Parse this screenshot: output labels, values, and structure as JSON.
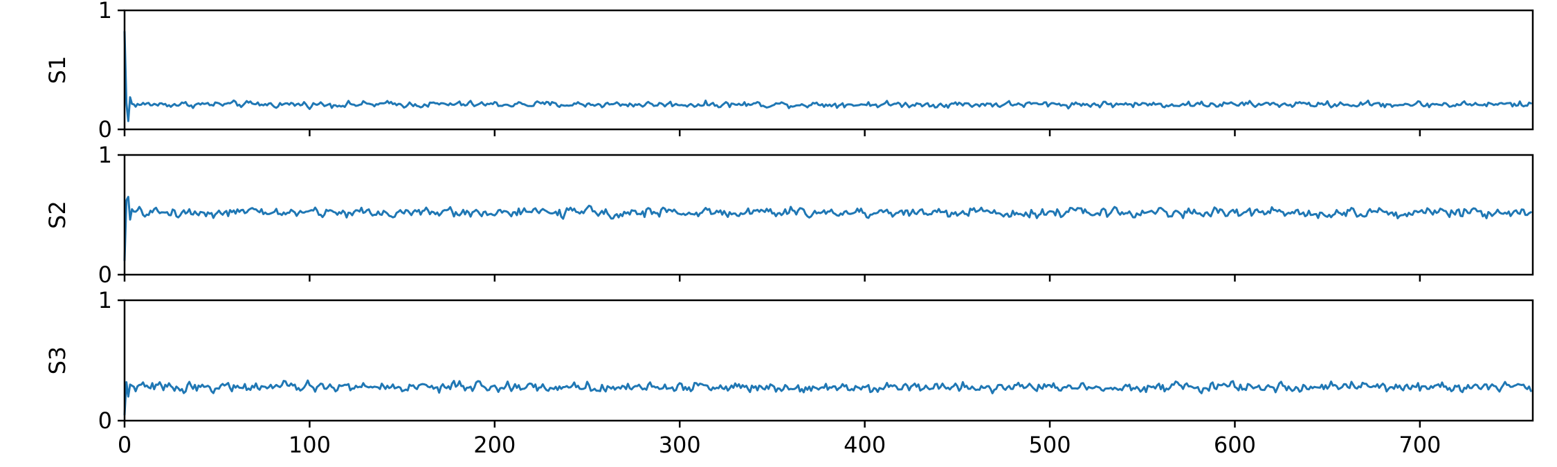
{
  "chart_data": {
    "type": "line",
    "n_points": 761,
    "xlim": [
      0,
      761
    ],
    "x_ticks": [
      0,
      100,
      200,
      300,
      400,
      500,
      600,
      700
    ],
    "x_tick_labels": [
      "0",
      "100",
      "200",
      "300",
      "400",
      "500",
      "600",
      "700"
    ],
    "shared_x": true,
    "grid": false,
    "colors": {
      "series": "#1f77b4",
      "frame": "#000000"
    },
    "panels": [
      {
        "ylabel": "S1",
        "ylim": [
          0,
          1
        ],
        "y_ticks": [
          0,
          1
        ],
        "y_tick_labels": [
          "0",
          "1"
        ],
        "initial": [
          0.82,
          0.22,
          0.07,
          0.27
        ],
        "baseline": 0.21,
        "amplitude": 0.035
      },
      {
        "ylabel": "S2",
        "ylim": [
          0,
          1
        ],
        "y_ticks": [
          0,
          1
        ],
        "y_tick_labels": [
          "0",
          "1"
        ],
        "initial": [
          0.12,
          0.62,
          0.65,
          0.46
        ],
        "baseline": 0.52,
        "amplitude": 0.055
      },
      {
        "ylabel": "S3",
        "ylim": [
          0,
          1
        ],
        "y_ticks": [
          0,
          1
        ],
        "y_tick_labels": [
          "0",
          "1"
        ],
        "initial": [
          0.05,
          0.32,
          0.2,
          0.3
        ],
        "baseline": 0.28,
        "amplitude": 0.055
      }
    ]
  }
}
